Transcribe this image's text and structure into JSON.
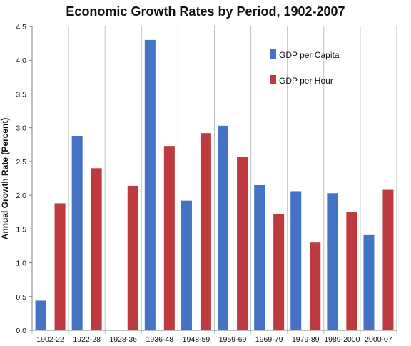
{
  "chart_data": {
    "type": "bar",
    "title": "Economic Growth Rates by Period, 1902-2007",
    "xlabel": "",
    "ylabel": "Annual Growth Rate (Percent)",
    "ylim": [
      0,
      4.5
    ],
    "yticks": [
      "0.0",
      "0.5",
      "1.0",
      "1.5",
      "2.0",
      "2.5",
      "3.0",
      "3.5",
      "4.0",
      "4.5"
    ],
    "categories": [
      "1902-22",
      "1922-28",
      "1928-36",
      "1936-48",
      "1948-59",
      "1959-69",
      "1969-79",
      "1979-89",
      "1989-2000",
      "2000-07"
    ],
    "series": [
      {
        "name": "GDP per Capita",
        "color": "#4472c4",
        "values": [
          0.44,
          2.88,
          0.0,
          4.3,
          1.92,
          3.03,
          2.15,
          2.06,
          2.03,
          1.41
        ]
      },
      {
        "name": "GDP per Hour",
        "color": "#be3a3e",
        "values": [
          1.88,
          2.4,
          2.14,
          2.73,
          2.92,
          2.57,
          1.72,
          1.3,
          1.75,
          2.08
        ]
      }
    ],
    "grid": "vertical",
    "legend": "top-right"
  }
}
